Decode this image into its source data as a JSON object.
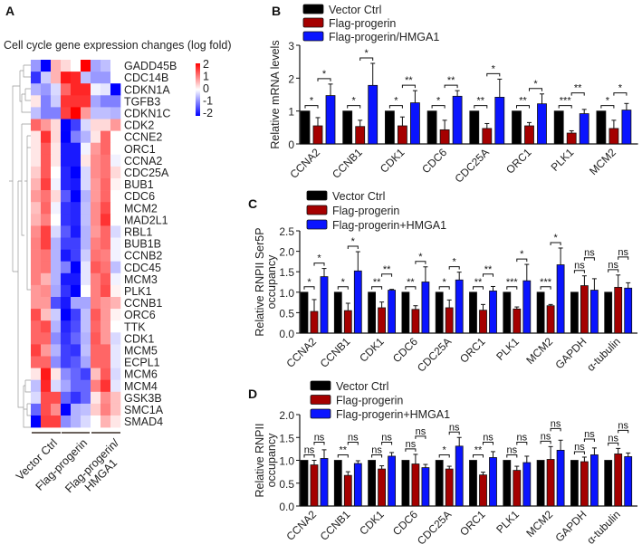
{
  "panel_labels": {
    "a": "A",
    "b": "B",
    "c": "C",
    "d": "D"
  },
  "colors": {
    "vector_ctrl": "#000000",
    "flag_progerin": "#a50000",
    "flag_progerin_hmga1": "#0a14ff",
    "heat_high": "#ff0000",
    "heat_low": "#0000ff"
  },
  "chart_data": [
    {
      "id": "A",
      "type": "heatmap",
      "title": "Cell cycle gene expression changes (log fold)",
      "scale": {
        "min": -2,
        "max": 2,
        "ticks": [
          "2",
          "1",
          "0",
          "-1",
          "-2"
        ]
      },
      "groups": [
        "Vector Ctrl",
        "Flag-progerin",
        "Flag-progerin/",
        "HMGA1"
      ],
      "rows": [
        "GADD45B",
        "CDC14B",
        "CDKN1A",
        "TGFB3",
        "CDKN1C",
        "CDK2",
        "CCNE2",
        "ORC1",
        "CCNA2",
        "CDC25A",
        "BUB1",
        "CDC6",
        "MCM2",
        "MAD2L1",
        "RBL1",
        "BUB1B",
        "CCNB2",
        "CDC45",
        "MCM3",
        "PLK1",
        "CCNB1",
        "ORC6",
        "TTK",
        "CDK1",
        "MCM5",
        "ECPL1",
        "MCM6",
        "MCM4",
        "GSK3B",
        "SMC1A",
        "SMAD4"
      ],
      "values": [
        [
          -0.8,
          -2,
          0.6,
          0.3,
          0,
          2,
          -0.7,
          -0.5,
          0
        ],
        [
          -1.6,
          -0.4,
          0.6,
          1.8,
          1.7,
          -0.5,
          -0.8,
          -0.8,
          0
        ],
        [
          -0.6,
          -0.8,
          -0.3,
          1.2,
          1.7,
          1.7,
          -0.1,
          -0.2,
          -2
        ],
        [
          0.2,
          -1,
          -0.4,
          1.6,
          1.6,
          1.6,
          -0.7,
          -1,
          -1
        ],
        [
          -0.5,
          -1,
          -1,
          1.5,
          2,
          0.8,
          -0.5,
          -0.5,
          -0.6
        ],
        [
          1.2,
          0.8,
          0.3,
          -2,
          -1.5,
          -0.3,
          0.3,
          0.3,
          0.8
        ],
        [
          0.2,
          1.6,
          0.3,
          -2,
          -1,
          -0.6,
          0.2,
          1.2,
          0
        ],
        [
          0.2,
          1.3,
          0.2,
          -1.8,
          -1.8,
          -0.1,
          0.8,
          1.2,
          0
        ],
        [
          0.2,
          1.3,
          0.2,
          -1.8,
          -1.8,
          0.2,
          0.9,
          1.1,
          -0.1
        ],
        [
          0.4,
          1.3,
          0,
          -1.7,
          -2,
          -0.3,
          0.9,
          1.1,
          0.3
        ],
        [
          0.6,
          1.5,
          -0.1,
          -1.7,
          -1.8,
          -0.3,
          0.8,
          1.2,
          0.1
        ],
        [
          0.8,
          1.1,
          0.3,
          -1.3,
          -2,
          -0.6,
          0.8,
          1.2,
          0
        ],
        [
          0.5,
          1.2,
          -0.1,
          -1.6,
          -1.7,
          -0.5,
          0.9,
          1.4,
          0
        ],
        [
          0.6,
          1,
          0,
          -1.6,
          -1.7,
          -0.5,
          0.9,
          1.6,
          0
        ],
        [
          0.9,
          1.5,
          -0.3,
          -1.3,
          -1.8,
          -0.6,
          0.8,
          1.2,
          -0.3
        ],
        [
          1,
          1.5,
          -0.6,
          -1.5,
          -1.5,
          -0.6,
          1,
          1.2,
          -0.1
        ],
        [
          1,
          1.1,
          -0.6,
          -1.8,
          -1.5,
          -0.4,
          1.1,
          1,
          -0.1
        ],
        [
          1,
          1.1,
          -0.6,
          -1,
          -2,
          -0.2,
          1.3,
          1.1,
          -0.5
        ],
        [
          1,
          0.6,
          -0.6,
          -1.8,
          -1.8,
          -0.2,
          1,
          1.3,
          -0.1
        ],
        [
          0.8,
          0.9,
          -0.7,
          -1.6,
          -2,
          0,
          1,
          1.4,
          0.1
        ],
        [
          0.8,
          0.8,
          -1.4,
          -1.8,
          -0.7,
          -0.7,
          1,
          0.8,
          0.6
        ],
        [
          1.4,
          0.5,
          -0.4,
          -2,
          -1.5,
          -0.5,
          1.3,
          0.8,
          0.1
        ],
        [
          1.2,
          1.4,
          -0.6,
          -1.7,
          -1.4,
          -0.5,
          1.2,
          0.8,
          0
        ],
        [
          1.2,
          1.2,
          -0.9,
          -1.6,
          -1.2,
          -0.6,
          1.3,
          0.8,
          -0.3
        ],
        [
          1.5,
          0.8,
          -0.6,
          -1.5,
          -1.6,
          -0.5,
          1.2,
          1.2,
          -0.2
        ],
        [
          1.2,
          1.2,
          -0.9,
          -1.5,
          -1.3,
          -0.7,
          1.2,
          1.2,
          -0.2
        ],
        [
          0.2,
          1.8,
          0.2,
          -0.9,
          -1.2,
          -1.5,
          0.5,
          1.3,
          -0.3
        ],
        [
          -0.5,
          1.7,
          -0.3,
          -0.7,
          -1.2,
          -1.2,
          1,
          1.6,
          -0.2
        ],
        [
          -0.3,
          1.4,
          1.4,
          -1.2,
          -1.6,
          -1.2,
          0.2,
          0.9,
          0.5
        ],
        [
          -1.2,
          1.4,
          0.9,
          -2,
          -0.6,
          -0.5,
          0.4,
          1,
          0.5
        ],
        [
          -2,
          1.5,
          1.5,
          -0.9,
          -0.6,
          -0.3,
          0,
          0.6,
          0.2
        ]
      ]
    },
    {
      "id": "B",
      "type": "bar",
      "ylabel": [
        "Relative mRNA  levels"
      ],
      "ylim": [
        0,
        3
      ],
      "yticks": [
        "0",
        "1",
        "2",
        "3"
      ],
      "categories": [
        "CCNA2",
        "CCNB1",
        "CDK1",
        "CDC6",
        "CDC25A",
        "ORC1",
        "PLK1",
        "MCM2"
      ],
      "legend": [
        "Vector Ctrl",
        "Flag-progerin",
        "Flag-progerin/HMGA1"
      ],
      "series": [
        {
          "name": "Vector Ctrl",
          "values": [
            1,
            1,
            1,
            1,
            1,
            1,
            1,
            1
          ],
          "err_top": [
            1,
            1,
            1,
            1,
            1,
            1,
            1,
            1
          ]
        },
        {
          "name": "Flag-progerin",
          "values": [
            0.55,
            0.53,
            0.55,
            0.43,
            0.47,
            0.55,
            0.33,
            0.47
          ],
          "err_top": [
            0.8,
            0.72,
            0.82,
            0.72,
            0.62,
            0.65,
            0.4,
            0.72
          ]
        },
        {
          "name": "Flag-progerin/HMGA1",
          "values": [
            1.47,
            1.78,
            1.25,
            1.45,
            1.42,
            1.22,
            0.92,
            1.03
          ],
          "err_top": [
            1.82,
            2.45,
            1.62,
            1.62,
            1.97,
            1.52,
            1.05,
            1.23
          ]
        }
      ],
      "significance": [
        [
          "*",
          "*"
        ],
        [
          "*",
          "*"
        ],
        [
          "*",
          "**"
        ],
        [
          "*",
          "**"
        ],
        [
          "**",
          "*"
        ],
        [
          "**",
          "*"
        ],
        [
          "***",
          "**"
        ],
        [
          "*",
          "*"
        ]
      ]
    },
    {
      "id": "C",
      "type": "bar",
      "ylabel": [
        "Relative RNPII Ser5P",
        "occupancy"
      ],
      "ylim": [
        0,
        2.5
      ],
      "yticks": [
        "0.0",
        "0.5",
        "1.0",
        "1.5",
        "2.0",
        "2.5"
      ],
      "categories": [
        "CCNA2",
        "CCNB1",
        "CDK1",
        "CDC6",
        "CDC25A",
        "ORC1",
        "PLK1",
        "MCM2",
        "GAPDH",
        "α-tubulin"
      ],
      "legend": [
        "Vector Ctrl",
        "Flag-progerin",
        "Flag-progerin+HMGA1"
      ],
      "series": [
        {
          "name": "Vector Ctrl",
          "values": [
            1,
            1,
            1,
            1,
            1,
            1,
            1,
            1,
            1,
            1
          ],
          "err_top": [
            1,
            1,
            1,
            1,
            1,
            1,
            1,
            1,
            1,
            1
          ]
        },
        {
          "name": "Flag-progerin",
          "values": [
            0.53,
            0.55,
            0.62,
            0.58,
            0.62,
            0.56,
            0.59,
            0.67,
            1.16,
            1.12
          ],
          "err_top": [
            0.82,
            0.73,
            0.76,
            0.67,
            0.81,
            0.7,
            0.64,
            0.7,
            1.4,
            1.42
          ]
        },
        {
          "name": "Flag-progerin+HMGA1",
          "values": [
            1.38,
            1.52,
            1.05,
            1.25,
            1.3,
            1.03,
            1.28,
            1.67,
            1.05,
            1.1
          ],
          "err_top": [
            1.58,
            1.99,
            1.07,
            1.62,
            1.49,
            1.14,
            1.68,
            2.08,
            1.33,
            1.23
          ]
        }
      ],
      "significance": [
        [
          "*",
          "*"
        ],
        [
          "*",
          "*"
        ],
        [
          "**",
          "**"
        ],
        [
          "**",
          "*"
        ],
        [
          "*",
          "*"
        ],
        [
          "**",
          "**"
        ],
        [
          "***",
          "*"
        ],
        [
          "***",
          "*"
        ],
        [
          "ns",
          "ns"
        ],
        [
          "ns",
          "ns"
        ]
      ]
    },
    {
      "id": "D",
      "type": "bar",
      "ylabel": [
        "Relative RNPII",
        "occupancy"
      ],
      "ylim": [
        0,
        2.0
      ],
      "yticks": [
        "0.0",
        "0.5",
        "1.0",
        "1.5",
        "2.0"
      ],
      "categories": [
        "CCNA2",
        "CCNB1",
        "CDK1",
        "CDC6",
        "CDC25A",
        "ORC1",
        "PLK1",
        "MCM2",
        "GAPDH",
        "α-tubulin"
      ],
      "legend": [
        "Vector Ctrl",
        "Flag-progerin",
        "Flag-progerin+HMGA1"
      ],
      "series": [
        {
          "name": "Vector Ctrl",
          "values": [
            1,
            1,
            1,
            1,
            1,
            1,
            1,
            1,
            1,
            1
          ],
          "err_top": [
            1,
            1,
            1,
            1,
            1,
            1,
            1,
            1,
            1,
            1
          ]
        },
        {
          "name": "Flag-progerin",
          "values": [
            0.9,
            0.67,
            0.81,
            0.92,
            0.81,
            0.68,
            0.78,
            1.02,
            0.97,
            1.14
          ],
          "err_top": [
            1.0,
            0.75,
            0.88,
            1.13,
            0.87,
            0.74,
            0.87,
            1.3,
            1.07,
            1.26
          ]
        },
        {
          "name": "Flag-progerin+HMGA1",
          "values": [
            1.04,
            0.93,
            1.09,
            0.84,
            1.31,
            1.06,
            0.95,
            1.22,
            1.12,
            1.08
          ],
          "err_top": [
            1.23,
            0.99,
            1.17,
            0.91,
            1.5,
            1.19,
            1.09,
            1.44,
            1.27,
            1.16
          ]
        }
      ],
      "significance": [
        [
          "ns",
          "ns"
        ],
        [
          "**",
          "ns"
        ],
        [
          "ns",
          "ns"
        ],
        [
          "ns",
          "ns"
        ],
        [
          "*",
          "ns"
        ],
        [
          "**",
          "ns"
        ],
        [
          "ns",
          "ns"
        ],
        [
          "ns",
          "ns"
        ],
        [
          "ns",
          "ns"
        ],
        [
          "ns",
          "ns"
        ]
      ]
    }
  ]
}
